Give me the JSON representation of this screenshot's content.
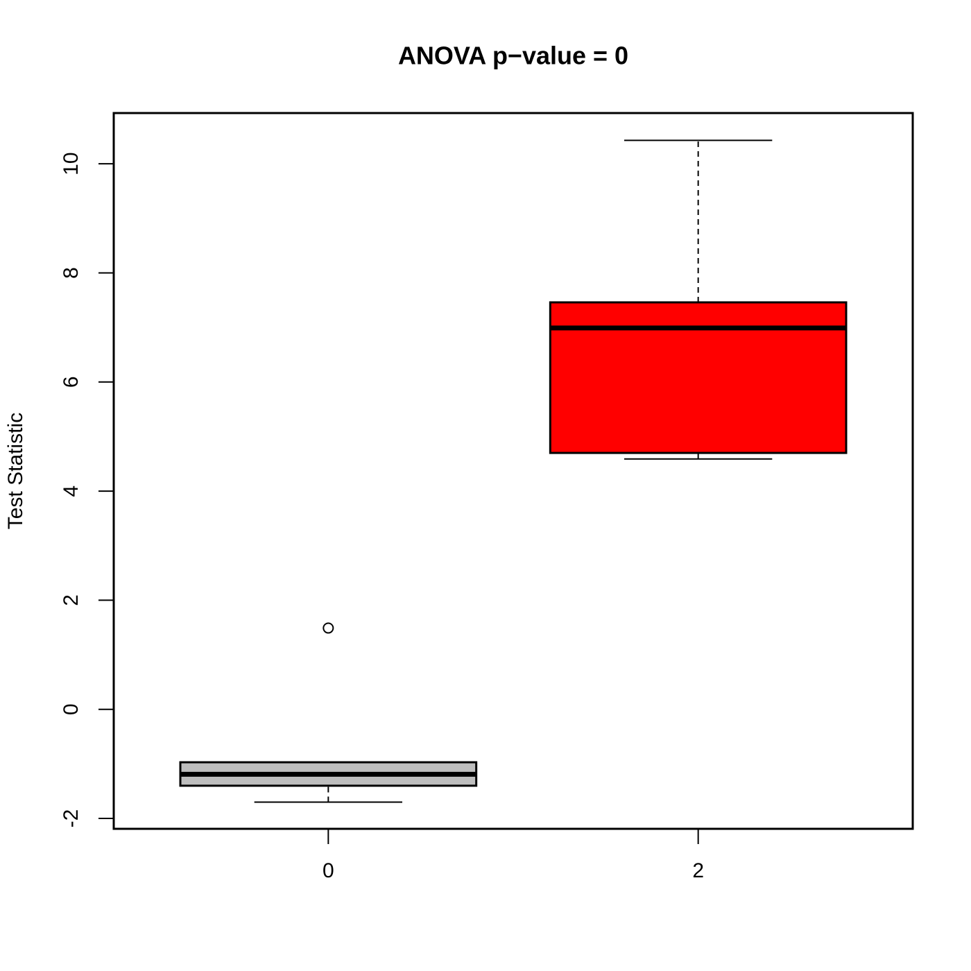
{
  "chart_data": {
    "type": "boxplot",
    "title": "ANOVA p−value = 0",
    "y_label": "Test Statistic",
    "categories": [
      "0",
      "2"
    ],
    "colors": [
      "#bebebe",
      "#ff0000"
    ],
    "boxes": [
      {
        "whislo": -1.7,
        "q1": -1.4,
        "med": -1.19,
        "q3": -0.97,
        "whishi": -0.97,
        "outliers": [
          1.49
        ]
      },
      {
        "whislo": 4.59,
        "q1": 4.7,
        "med": 6.99,
        "q3": 7.46,
        "whishi": 10.43,
        "outliers": []
      }
    ],
    "ylim": [
      -2.19,
      10.93
    ],
    "yticks": [
      -2,
      0,
      2,
      4,
      6,
      8,
      10
    ]
  }
}
